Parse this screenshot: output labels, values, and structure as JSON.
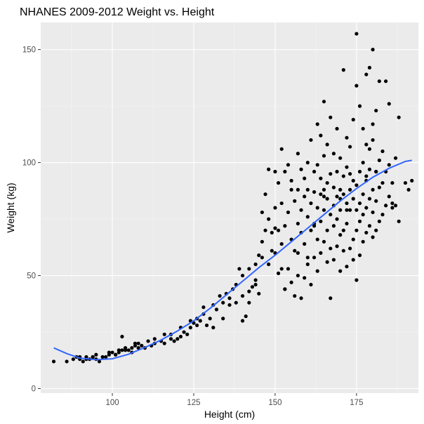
{
  "chart_data": {
    "type": "scatter",
    "title": "NHANES 2009-2012 Weight vs. Height",
    "xlabel": "Height (cm)",
    "ylabel": "Weight (kg)",
    "xlim": [
      78,
      194
    ],
    "ylim": [
      -2,
      162
    ],
    "xticks": [
      100,
      125,
      150,
      175
    ],
    "yticks": [
      0,
      50,
      100,
      150
    ],
    "xtick_labels": [
      "100",
      "125",
      "150",
      "175"
    ],
    "ytick_labels": [
      "0",
      "50",
      "100",
      "150"
    ],
    "grid": true,
    "colors": {
      "panel": "#ebebeb",
      "grid_major": "#ffffff",
      "grid_minor": "#f5f5f5",
      "points": "#000000",
      "smooth": "#3366ff",
      "ticks": "#333333"
    },
    "series": [
      {
        "kind": "points",
        "x": [
          82,
          86,
          88,
          89,
          90,
          91,
          92,
          93,
          94,
          95,
          96,
          98,
          99,
          100,
          101,
          102,
          103,
          103,
          104,
          105,
          106,
          107,
          108,
          108,
          110,
          112,
          113,
          115,
          116,
          118,
          119,
          120,
          121,
          122,
          123,
          124,
          125,
          126,
          127,
          128,
          129,
          130,
          131,
          132,
          133,
          134,
          135,
          136,
          137,
          138,
          139,
          140,
          140,
          141,
          142,
          142,
          143,
          144,
          144,
          145,
          145,
          146,
          146,
          147,
          147,
          148,
          148,
          149,
          149,
          150,
          150,
          150,
          151,
          151,
          151,
          152,
          152,
          152,
          153,
          153,
          153,
          154,
          154,
          154,
          155,
          155,
          155,
          156,
          156,
          156,
          157,
          157,
          157,
          157,
          158,
          158,
          158,
          158,
          159,
          159,
          159,
          159,
          160,
          160,
          160,
          160,
          161,
          161,
          161,
          161,
          162,
          162,
          162,
          162,
          163,
          163,
          163,
          163,
          163,
          164,
          164,
          164,
          164,
          164,
          165,
          165,
          165,
          165,
          165,
          166,
          166,
          166,
          166,
          166,
          167,
          167,
          167,
          167,
          167,
          168,
          168,
          168,
          168,
          168,
          169,
          169,
          169,
          169,
          169,
          170,
          170,
          170,
          170,
          170,
          171,
          171,
          171,
          171,
          171,
          172,
          172,
          172,
          172,
          172,
          173,
          173,
          173,
          173,
          173,
          174,
          174,
          174,
          174,
          174,
          175,
          175,
          175,
          175,
          175,
          175,
          176,
          176,
          176,
          176,
          176,
          177,
          177,
          177,
          177,
          177,
          178,
          178,
          178,
          178,
          178,
          179,
          179,
          179,
          179,
          179,
          180,
          180,
          180,
          180,
          180,
          181,
          181,
          181,
          181,
          182,
          182,
          182,
          182,
          183,
          183,
          183,
          184,
          184,
          184,
          185,
          185,
          185,
          186,
          186,
          187,
          187,
          188,
          188,
          190,
          191,
          192,
          186,
          181,
          180,
          178,
          172,
          170,
          165,
          162,
          160,
          157,
          155,
          153,
          152,
          150,
          148,
          146,
          144,
          142,
          140,
          138,
          136,
          134,
          131,
          128,
          126,
          124,
          121,
          118,
          116,
          113,
          111,
          109,
          107,
          106,
          104,
          102,
          101,
          99,
          97,
          95,
          94,
          92,
          90
        ],
        "y": [
          12,
          12,
          13,
          14,
          13,
          12,
          14,
          13,
          14,
          13,
          12,
          14,
          15,
          16,
          15,
          16,
          17,
          23,
          18,
          17,
          16,
          19,
          18,
          20,
          18,
          19,
          20,
          21,
          20,
          22,
          21,
          22,
          23,
          25,
          24,
          27,
          29,
          28,
          30,
          33,
          28,
          31,
          37,
          35,
          41,
          38,
          42,
          40,
          44,
          46,
          53,
          50,
          30,
          32,
          38,
          43,
          45,
          48,
          55,
          59,
          42,
          58,
          65,
          70,
          86,
          55,
          75,
          61,
          69,
          60,
          80,
          96,
          51,
          70,
          91,
          64,
          82,
          106,
          44,
          72,
          96,
          53,
          78,
          99,
          47,
          66,
          88,
          41,
          61,
          83,
          50,
          73,
          88,
          104,
          40,
          69,
          79,
          97,
          49,
          64,
          85,
          93,
          55,
          76,
          88,
          100,
          46,
          70,
          82,
          110,
          58,
          72,
          87,
          96,
          52,
          66,
          80,
          99,
          117,
          60,
          74,
          86,
          93,
          112,
          65,
          79,
          85,
          103,
          127,
          56,
          70,
          84,
          91,
          108,
          40,
          62,
          77,
          95,
          120,
          57,
          72,
          81,
          89,
          104,
          63,
          75,
          85,
          96,
          115,
          52,
          68,
          79,
          88,
          102,
          61,
          70,
          86,
          94,
          141,
          54,
          73,
          82,
          98,
          111,
          62,
          79,
          88,
          95,
          107,
          57,
          66,
          84,
          92,
          119,
          48,
          70,
          79,
          90,
          134,
          157,
          59,
          74,
          82,
          96,
          125,
          65,
          77,
          86,
          100,
          115,
          69,
          80,
          92,
          108,
          139,
          72,
          84,
          97,
          106,
          142,
          67,
          78,
          88,
          110,
          150,
          70,
          83,
          96,
          123,
          74,
          89,
          101,
          136,
          77,
          91,
          105,
          81,
          96,
          136,
          85,
          99,
          126,
          80,
          91,
          81,
          102,
          74,
          120,
          91,
          88,
          92,
          82,
          96,
          117,
          94,
          79,
          84,
          88,
          73,
          58,
          60,
          92,
          44,
          53,
          71,
          97,
          78,
          46,
          53,
          41,
          38,
          37,
          31,
          27,
          36,
          31,
          30,
          27,
          24,
          24,
          22,
          21,
          19,
          20,
          18,
          17,
          17,
          15,
          16,
          14,
          15,
          14,
          13,
          14
        ]
      },
      {
        "kind": "smooth",
        "x": [
          82,
          86,
          90,
          95,
          100,
          105,
          110,
          115,
          120,
          125,
          130,
          135,
          140,
          145,
          150,
          155,
          160,
          165,
          170,
          175,
          180,
          185,
          190,
          192
        ],
        "y": [
          18,
          15.5,
          13.5,
          12.8,
          13.2,
          15.2,
          18.2,
          21.5,
          25.5,
          30,
          35.5,
          41.5,
          47.5,
          53.5,
          59,
          65,
          71,
          77,
          83,
          88.5,
          93.5,
          97.5,
          100.5,
          101
        ]
      }
    ]
  }
}
